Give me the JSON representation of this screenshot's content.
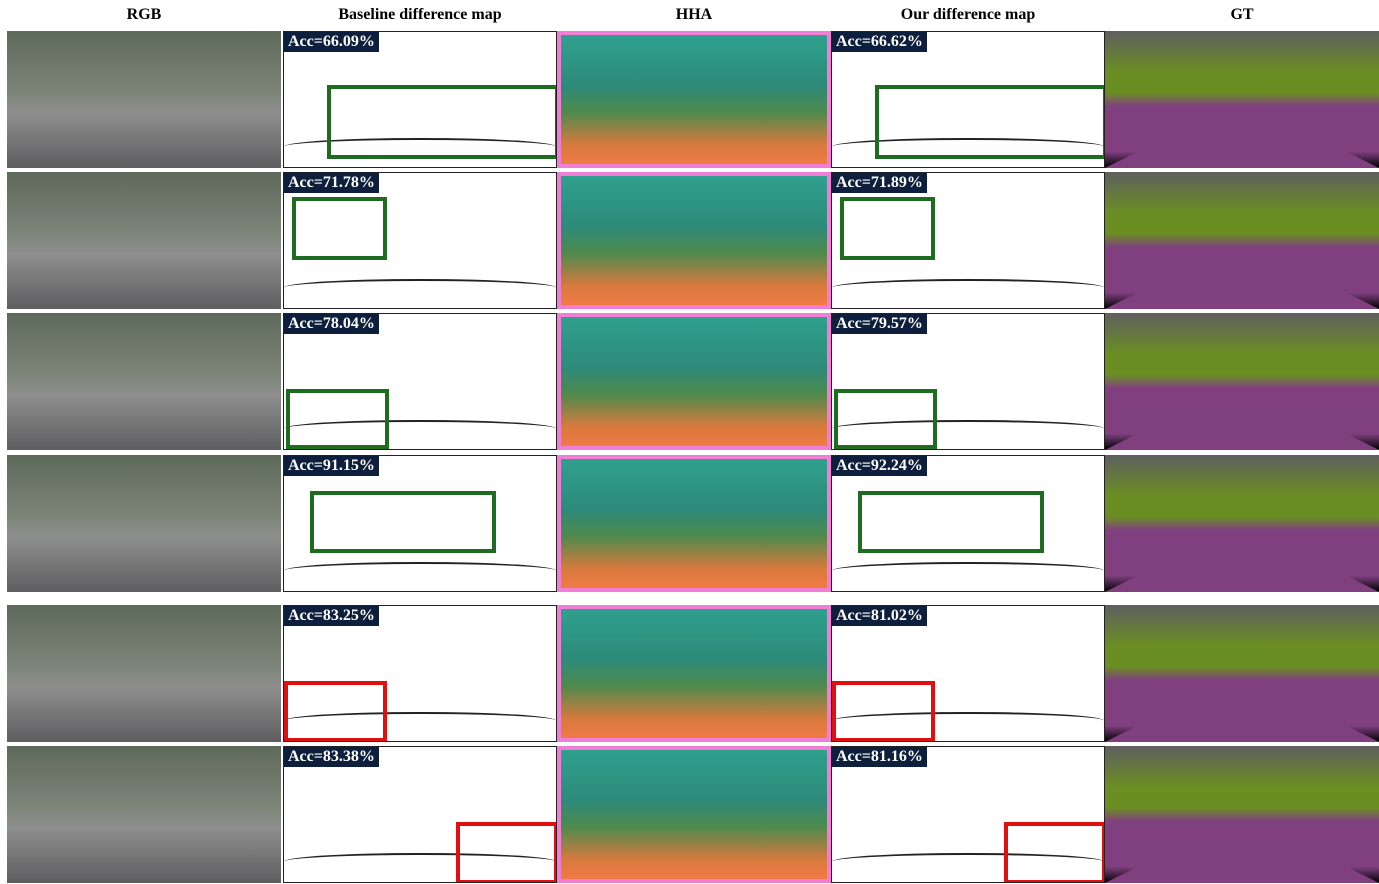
{
  "headers": [
    "RGB",
    "Baseline difference map",
    "HHA",
    "Our difference map",
    "GT"
  ],
  "rows": [
    {
      "baseline_acc": "Acc=66.09%",
      "ours_acc": "Acc=66.62%"
    },
    {
      "baseline_acc": "Acc=71.78%",
      "ours_acc": "Acc=71.89%"
    },
    {
      "baseline_acc": "Acc=78.04%",
      "ours_acc": "Acc=79.57%"
    },
    {
      "baseline_acc": "Acc=91.15%",
      "ours_acc": "Acc=92.24%"
    },
    {
      "baseline_acc": "Acc=83.25%",
      "ours_acc": "Acc=81.02%"
    },
    {
      "baseline_acc": "Acc=83.38%",
      "ours_acc": "Acc=81.16%"
    }
  ]
}
